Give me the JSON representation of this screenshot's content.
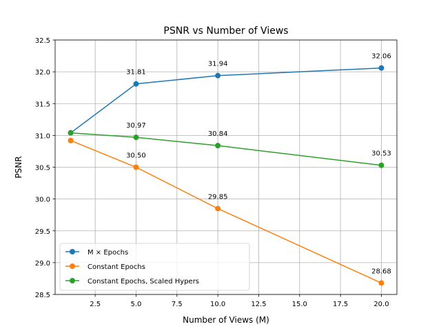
{
  "chart_data": {
    "type": "line",
    "title": "PSNR vs Number of Views",
    "xlabel": "Number of Views (M)",
    "ylabel": "PSNR",
    "xlim": [
      0.05,
      20.95
    ],
    "ylim": [
      28.5,
      32.5
    ],
    "x_ticks": [
      2.5,
      5.0,
      7.5,
      10.0,
      12.5,
      15.0,
      17.5,
      20.0
    ],
    "x_tick_labels": [
      "2.5",
      "5.0",
      "7.5",
      "10.0",
      "12.5",
      "15.0",
      "17.5",
      "20.0"
    ],
    "y_ticks": [
      28.5,
      29.0,
      29.5,
      30.0,
      30.5,
      31.0,
      31.5,
      32.0,
      32.5
    ],
    "y_tick_labels": [
      "28.5",
      "29.0",
      "29.5",
      "30.0",
      "30.5",
      "31.0",
      "31.5",
      "32.0",
      "32.5"
    ],
    "grid": true,
    "legend_position": "lower-left",
    "series": [
      {
        "name": "M × Epochs",
        "color": "#1f77b4",
        "x": [
          1,
          5,
          10,
          20
        ],
        "values": [
          31.04,
          31.81,
          31.94,
          32.06
        ],
        "annotations": [
          null,
          "31.81",
          "31.94",
          "32.06"
        ]
      },
      {
        "name": "Constant Epochs",
        "color": "#ff7f0e",
        "x": [
          1,
          5,
          10,
          20
        ],
        "values": [
          30.92,
          30.5,
          29.85,
          28.68
        ],
        "annotations": [
          null,
          "30.50",
          "29.85",
          "28.68"
        ]
      },
      {
        "name": "Constant Epochs, Scaled Hypers",
        "color": "#2ca02c",
        "x": [
          1,
          5,
          10,
          20
        ],
        "values": [
          31.04,
          30.97,
          30.84,
          30.53
        ],
        "annotations": [
          null,
          "30.97",
          "30.84",
          "30.53"
        ]
      }
    ]
  }
}
